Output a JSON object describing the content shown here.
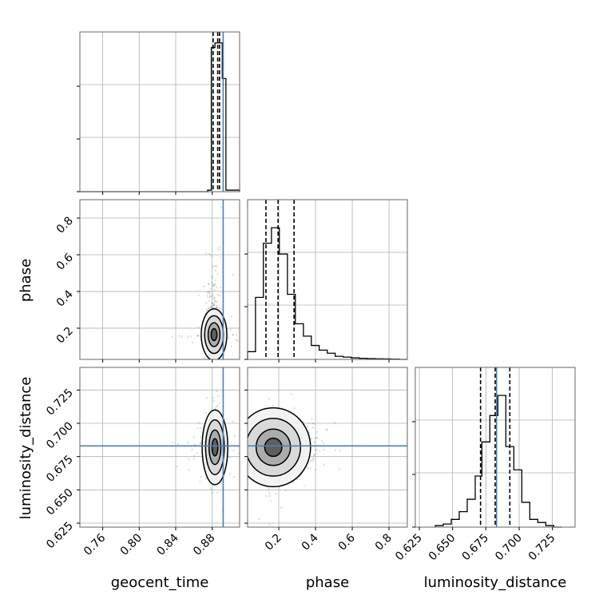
{
  "chart_data": {
    "type": "corner",
    "parameters": [
      {
        "name": "geocent_time",
        "label": "geocent_time",
        "range": [
          0.735,
          0.91
        ],
        "ticks": [
          "0.76",
          "0.80",
          "0.84",
          "0.88"
        ],
        "truth": 0.892,
        "quantiles": [
          0.881,
          0.886,
          0.888
        ],
        "hist_edges": [
          0.735,
          0.875,
          0.879,
          0.883,
          0.887,
          0.891,
          0.895,
          0.91
        ],
        "hist_counts": [
          0,
          0.01,
          0.93,
          0.96,
          0.96,
          0.73,
          0.01
        ]
      },
      {
        "name": "phase",
        "label": "phase",
        "range": [
          0.03,
          0.9
        ],
        "ticks": [
          "0.2",
          "0.4",
          "0.6",
          "0.8"
        ],
        "quantiles": [
          0.13,
          0.196,
          0.283
        ],
        "hist_edges": [
          0.03,
          0.073,
          0.116,
          0.16,
          0.203,
          0.247,
          0.29,
          0.334,
          0.377,
          0.42,
          0.464,
          0.507,
          0.551,
          0.594,
          0.638,
          0.681,
          0.725,
          0.768,
          0.811,
          0.855,
          0.9
        ],
        "hist_counts": [
          0.05,
          0.4,
          0.75,
          0.85,
          0.68,
          0.42,
          0.23,
          0.15,
          0.09,
          0.06,
          0.04,
          0.02,
          0.015,
          0.01,
          0.007,
          0.005,
          0.004,
          0.003,
          0.002,
          0.0
        ]
      },
      {
        "name": "luminosity_distance",
        "label": "luminosity_distance",
        "range": [
          0.622,
          0.742
        ],
        "ticks": [
          "0.625",
          "0.650",
          "0.675",
          "0.700",
          "0.725"
        ],
        "truth": 0.683,
        "quantiles": [
          0.671,
          0.682,
          0.693
        ],
        "hist_edges": [
          0.637,
          0.643,
          0.649,
          0.655,
          0.661,
          0.667,
          0.672,
          0.678,
          0.684,
          0.69,
          0.696,
          0.702,
          0.708,
          0.714,
          0.72,
          0.726,
          0.732
        ],
        "hist_counts": [
          0.01,
          0.02,
          0.05,
          0.1,
          0.18,
          0.33,
          0.55,
          0.72,
          0.85,
          0.52,
          0.37,
          0.16,
          0.05,
          0.03,
          0.01,
          0.0
        ]
      }
    ],
    "pairs": [
      {
        "x": "geocent_time",
        "y": "phase",
        "center": [
          0.882,
          0.165
        ],
        "spread": [
          0.0045,
          0.045
        ],
        "truth_x": 0.892
      },
      {
        "x": "geocent_time",
        "y": "luminosity_distance",
        "center": [
          0.883,
          0.682
        ],
        "spread": [
          0.0045,
          0.009
        ],
        "truth_x": 0.892,
        "truth_y": 0.683
      },
      {
        "x": "phase",
        "y": "luminosity_distance",
        "center": [
          0.17,
          0.682
        ],
        "spread": [
          0.065,
          0.0095
        ],
        "truth_y": 0.683
      }
    ],
    "truth_color": "#4682b4",
    "hist_color": "#000000",
    "scatter_color": "#000000",
    "grid": true
  }
}
